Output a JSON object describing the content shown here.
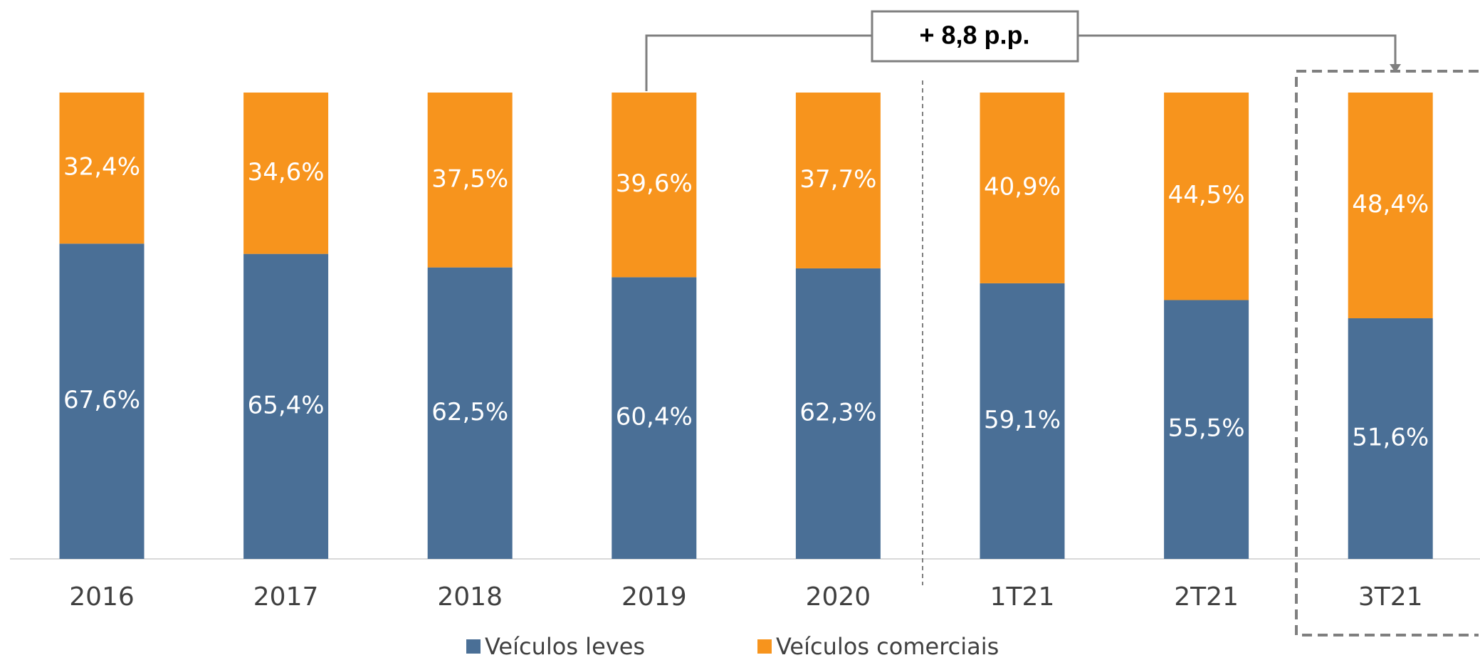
{
  "chart_data": {
    "type": "stacked_bar",
    "categories": [
      "2016",
      "2017",
      "2018",
      "2019",
      "2020",
      "1T21",
      "2T21",
      "3T21"
    ],
    "series": [
      {
        "name": "Veículos leves",
        "color": "#4a6f96",
        "values": [
          67.6,
          65.4,
          62.5,
          60.4,
          62.3,
          59.1,
          55.5,
          51.6
        ],
        "value_labels": [
          "67,6%",
          "65,4%",
          "62,5%",
          "60,4%",
          "62,3%",
          "59,1%",
          "55,5%",
          "51,6%"
        ]
      },
      {
        "name": "Veículos comerciais",
        "color": "#f7941d",
        "values": [
          32.4,
          34.6,
          37.5,
          39.6,
          37.7,
          40.9,
          44.5,
          48.4
        ],
        "value_labels": [
          "32,4%",
          "34,6%",
          "37,5%",
          "39,6%",
          "37,7%",
          "40,9%",
          "44,5%",
          "48,4%"
        ]
      }
    ],
    "ylim": [
      0,
      100
    ],
    "annotation": "+ 8,8 p.p."
  }
}
